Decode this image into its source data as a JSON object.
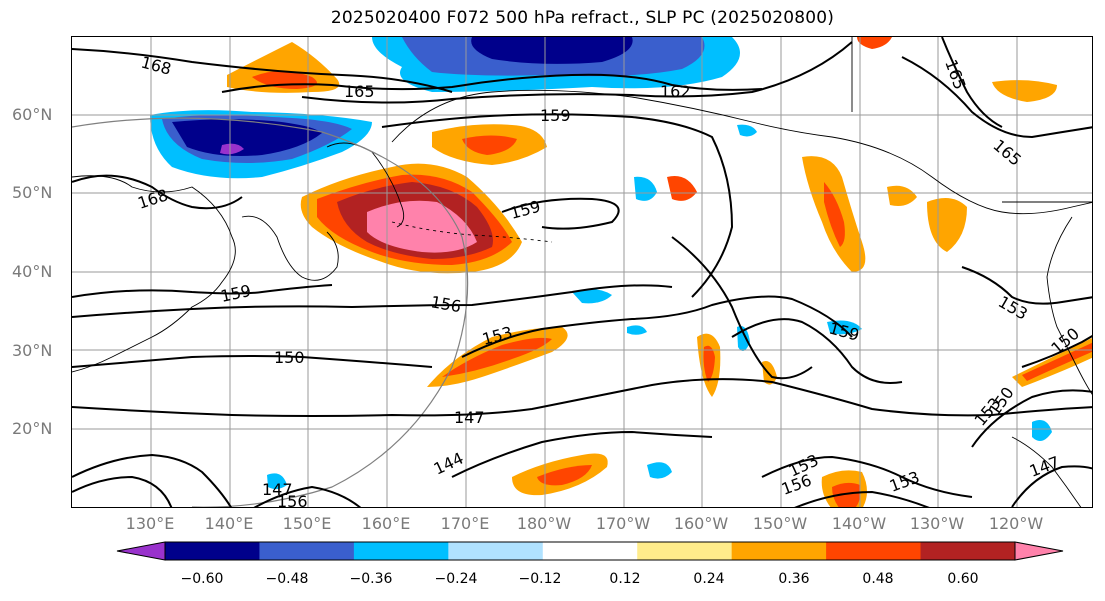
{
  "title": "2025020400 F072 500 hPa refract., SLP PC (2025020800)",
  "lat_labels": [
    "60°N",
    "50°N",
    "40°N",
    "30°N",
    "20°N"
  ],
  "lon_labels": [
    "130°E",
    "140°E",
    "150°E",
    "160°E",
    "170°E",
    "180°W",
    "170°W",
    "160°W",
    "150°W",
    "140°W",
    "130°W",
    "120°W"
  ],
  "colorbar": {
    "tick_labels": [
      "−0.60",
      "−0.48",
      "−0.36",
      "−0.24",
      "−0.12",
      "0.12",
      "0.24",
      "0.36",
      "0.48",
      "0.60"
    ],
    "colors": [
      "#9932cc",
      "#00008b",
      "#3a5fcd",
      "#00bfff",
      "#b0e2ff",
      "#ffffff",
      "#ffec8b",
      "#ffa500",
      "#ff4500",
      "#b22222",
      "#ff82ab"
    ]
  },
  "contour_labels": [
    "168",
    "165",
    "162",
    "159",
    "168",
    "159",
    "159",
    "156",
    "153",
    "150",
    "147",
    "144",
    "159",
    "153",
    "150",
    "153",
    "156",
    "165",
    "165",
    "153",
    "150",
    "147",
    "147",
    "156",
    "153"
  ]
}
